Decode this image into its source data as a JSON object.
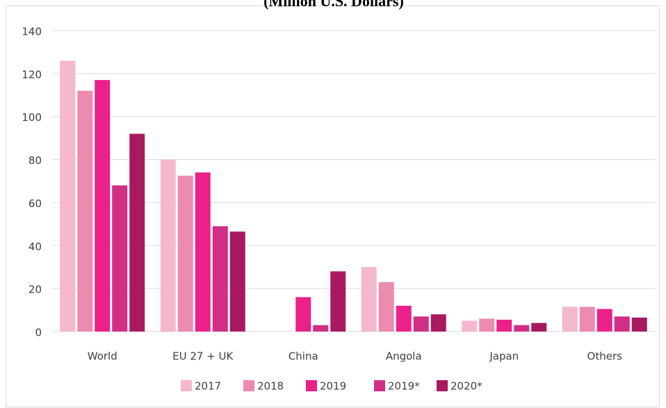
{
  "chart_data": {
    "type": "bar",
    "title": "(Million U.S. Dollars)",
    "categories": [
      "World",
      "EU 27 + UK",
      "China",
      "Angola",
      "Japan",
      "Others"
    ],
    "series": [
      {
        "name": "2017",
        "color": "#f4b8cc",
        "values": [
          126,
          80,
          0,
          30,
          5,
          11.5
        ]
      },
      {
        "name": "2018",
        "color": "#ec8ab0",
        "values": [
          112,
          72.5,
          0,
          23,
          6,
          11.5
        ]
      },
      {
        "name": "2019",
        "color": "#ea2189",
        "values": [
          117,
          74,
          16,
          12,
          5.5,
          10.5
        ]
      },
      {
        "name": "2019*",
        "color": "#cf2f85",
        "values": [
          68,
          49,
          3,
          7,
          3,
          7
        ]
      },
      {
        "name": "2020*",
        "color": "#a8195f",
        "values": [
          92,
          46.5,
          28,
          8,
          4,
          6.5
        ]
      }
    ],
    "ylim": [
      0,
      140
    ],
    "yticks": [
      0,
      20,
      40,
      60,
      80,
      100,
      120,
      140
    ],
    "grid": true,
    "legend": "bottom"
  }
}
